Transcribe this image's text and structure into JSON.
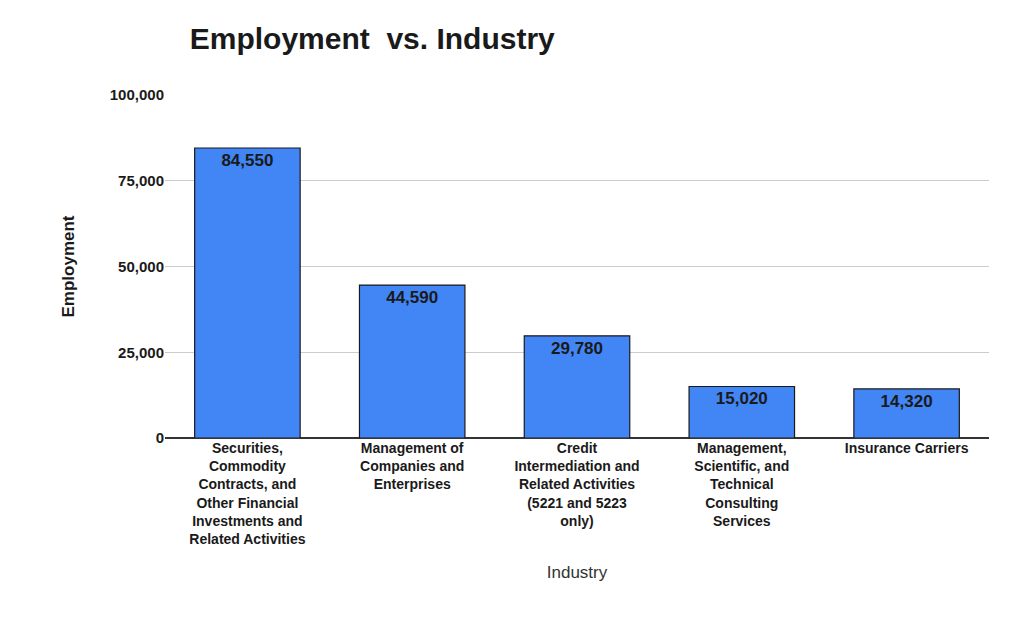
{
  "chart_data": {
    "type": "bar",
    "title": "Employment  vs. Industry",
    "x_label": "Industry",
    "y_label": "Employment",
    "categories": [
      "Securities, Commodity Contracts, and Other Financial Investments and Related Activities",
      "Management of Companies and Enterprises",
      "Credit Intermediation and Related Activities (5221 and 5223 only)",
      "Management, Scientific, and Technical Consulting Services",
      "Insurance Carriers"
    ],
    "values": [
      84550,
      44590,
      29780,
      15020,
      14320
    ],
    "value_labels": [
      "84,550",
      "44,590",
      "29,780",
      "15,020",
      "14,320"
    ],
    "color": "#4285f4",
    "ylim": [
      0,
      100000
    ],
    "yticks": [
      0,
      {
        "value": 25000,
        "label": "25,000"
      },
      {
        "value": 50000,
        "label": "50,000"
      },
      {
        "value": 75000,
        "label": "75,000"
      },
      {
        "value": 100000,
        "label": "100,000"
      }
    ],
    "grid": true,
    "data_labels": true
  }
}
